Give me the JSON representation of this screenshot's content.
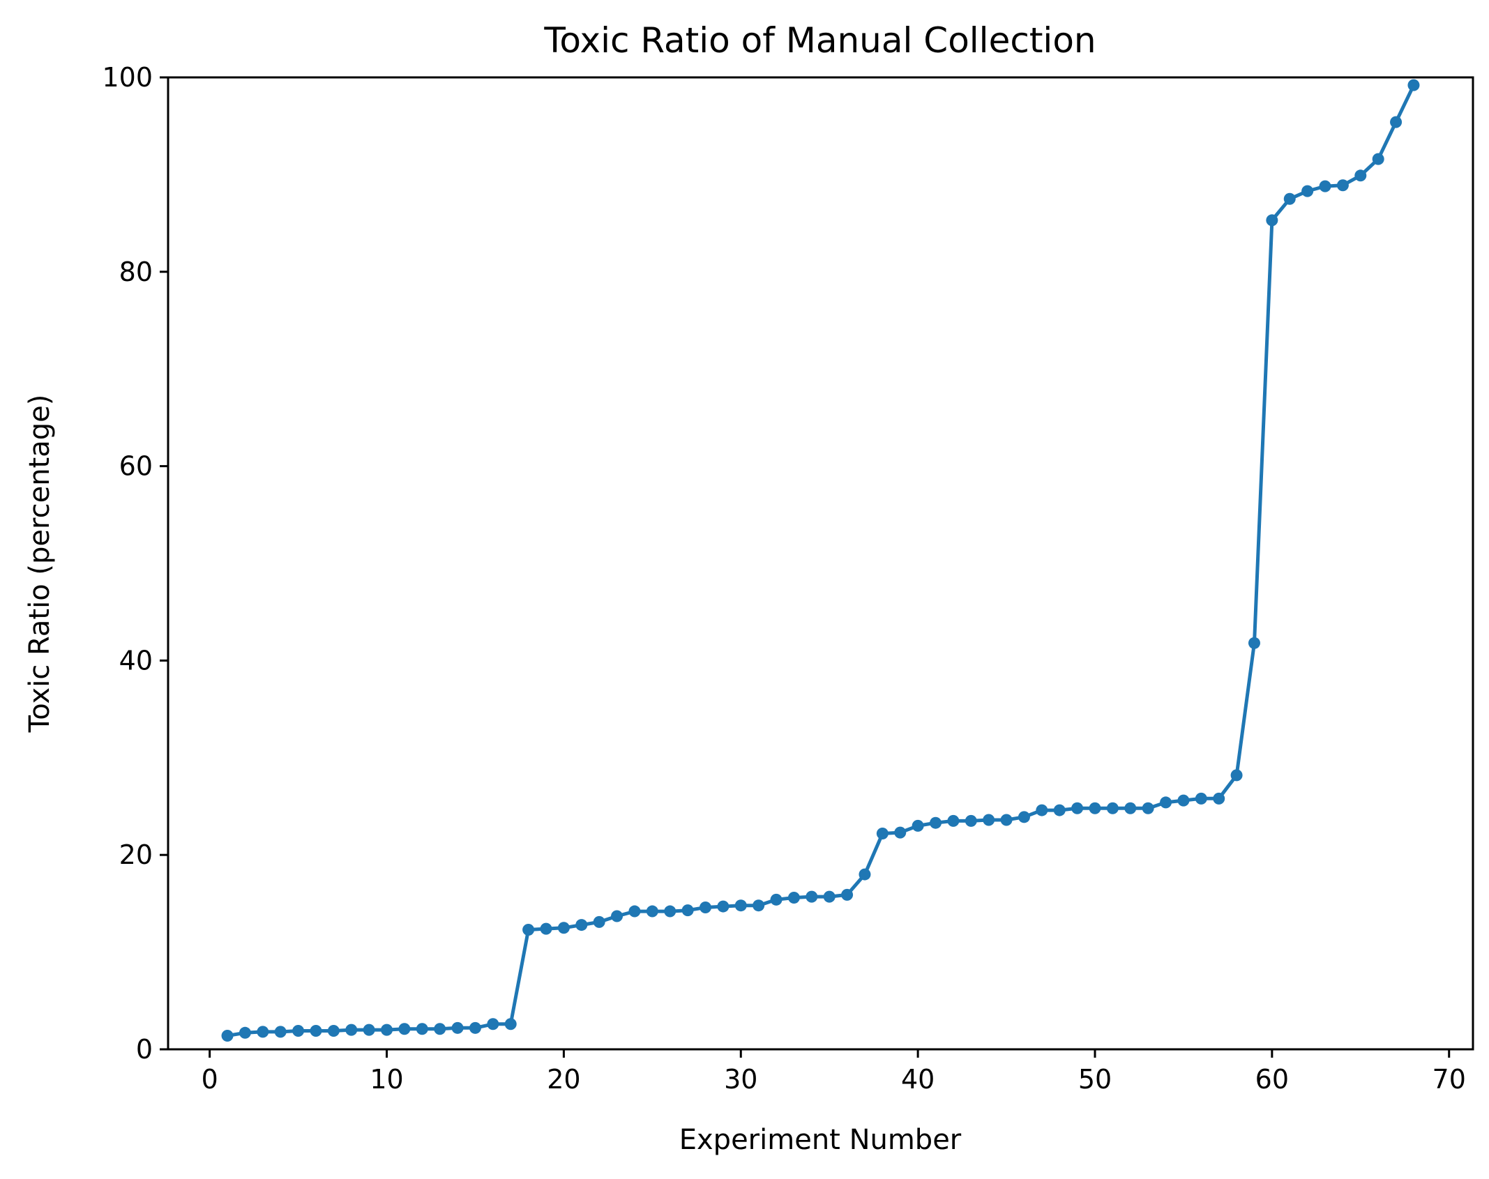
{
  "chart_data": {
    "type": "line",
    "title": "Toxic Ratio of Manual Collection",
    "xlabel": "Experiment Number",
    "ylabel": "Toxic Ratio (percentage)",
    "xlim": [
      -2.35,
      71.35
    ],
    "ylim": [
      0,
      100
    ],
    "xticks": [
      0,
      10,
      20,
      30,
      40,
      50,
      60,
      70
    ],
    "yticks": [
      0,
      20,
      40,
      60,
      80,
      100
    ],
    "grid": false,
    "line_color": "#1f77b4",
    "marker": "circle",
    "series": [
      {
        "x": [
          1,
          2,
          3,
          4,
          5,
          6,
          7,
          8,
          9,
          10,
          11,
          12,
          13,
          14,
          15,
          16,
          17,
          18,
          19,
          20,
          21,
          22,
          23,
          24,
          25,
          26,
          27,
          28,
          29,
          30,
          31,
          32,
          33,
          34,
          35,
          36,
          37,
          38,
          39,
          40,
          41,
          42,
          43,
          44,
          45,
          46,
          47,
          48,
          49,
          50,
          51,
          52,
          53,
          54,
          55,
          56,
          57,
          58,
          59,
          60,
          61,
          62,
          63,
          64,
          65,
          66,
          67,
          68
        ],
        "values": [
          1.4,
          1.7,
          1.8,
          1.8,
          1.9,
          1.9,
          1.9,
          2.0,
          2.0,
          2.0,
          2.1,
          2.1,
          2.1,
          2.2,
          2.2,
          2.6,
          2.6,
          12.3,
          12.4,
          12.5,
          12.8,
          13.1,
          13.7,
          14.2,
          14.2,
          14.2,
          14.3,
          14.6,
          14.7,
          14.8,
          14.8,
          15.4,
          15.6,
          15.7,
          15.7,
          15.9,
          18.0,
          22.2,
          22.3,
          23.0,
          23.3,
          23.5,
          23.5,
          23.6,
          23.6,
          23.9,
          24.6,
          24.6,
          24.8,
          24.8,
          24.8,
          24.8,
          24.8,
          25.4,
          25.6,
          25.8,
          25.8,
          28.2,
          41.8,
          85.3,
          87.5,
          88.3,
          88.8,
          88.9,
          89.9,
          91.6,
          95.4,
          99.2
        ]
      }
    ]
  }
}
